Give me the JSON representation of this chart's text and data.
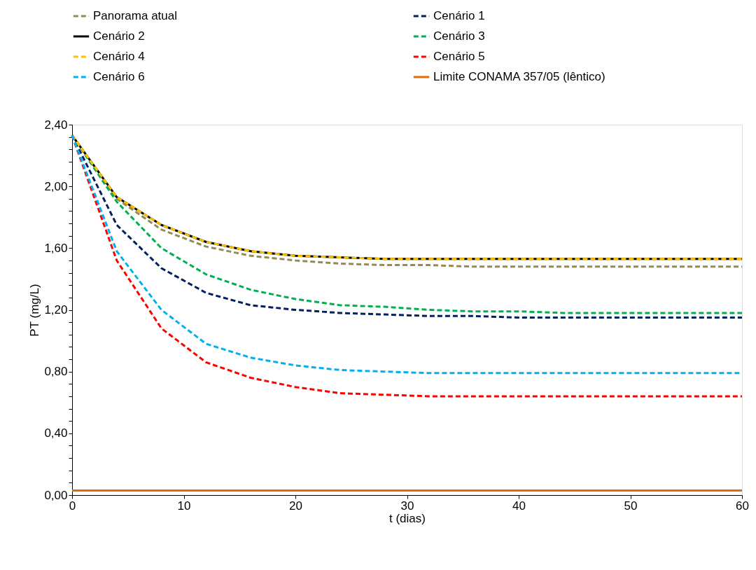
{
  "chart_data": {
    "type": "line",
    "xlabel": "t (dias)",
    "ylabel": "PT (mg/L)",
    "x": [
      0,
      4,
      8,
      12,
      16,
      20,
      24,
      28,
      32,
      36,
      40,
      44,
      48,
      52,
      56,
      60
    ],
    "series": [
      {
        "name": "Panorama atual",
        "color": "#948a54",
        "line_style": "dashed",
        "values": [
          2.33,
          1.92,
          1.72,
          1.61,
          1.55,
          1.52,
          1.5,
          1.49,
          1.49,
          1.48,
          1.48,
          1.48,
          1.48,
          1.48,
          1.48,
          1.48
        ]
      },
      {
        "name": "Cenário 1",
        "color": "#002060",
        "line_style": "dashed",
        "values": [
          2.33,
          1.75,
          1.47,
          1.31,
          1.23,
          1.2,
          1.18,
          1.17,
          1.16,
          1.16,
          1.15,
          1.15,
          1.15,
          1.15,
          1.15,
          1.15
        ]
      },
      {
        "name": "Cenário 2",
        "color": "#000000",
        "line_style": "solid",
        "values": [
          2.33,
          1.93,
          1.75,
          1.64,
          1.58,
          1.55,
          1.54,
          1.53,
          1.53,
          1.53,
          1.53,
          1.53,
          1.53,
          1.53,
          1.53,
          1.53
        ]
      },
      {
        "name": "Cenário 3",
        "color": "#00b050",
        "line_style": "dashed",
        "values": [
          2.33,
          1.9,
          1.6,
          1.43,
          1.33,
          1.27,
          1.23,
          1.22,
          1.2,
          1.19,
          1.19,
          1.18,
          1.18,
          1.18,
          1.18,
          1.18
        ]
      },
      {
        "name": "Cenário 4",
        "color": "#ffc000",
        "line_style": "dashed",
        "values": [
          2.33,
          1.93,
          1.75,
          1.64,
          1.58,
          1.55,
          1.54,
          1.53,
          1.53,
          1.53,
          1.53,
          1.53,
          1.53,
          1.53,
          1.53,
          1.53
        ]
      },
      {
        "name": "Cenário 5",
        "color": "#ff0000",
        "line_style": "dashed",
        "values": [
          2.33,
          1.52,
          1.08,
          0.86,
          0.76,
          0.7,
          0.66,
          0.65,
          0.64,
          0.64,
          0.64,
          0.64,
          0.64,
          0.64,
          0.64,
          0.64
        ]
      },
      {
        "name": "Cenário 6",
        "color": "#00b0f0",
        "line_style": "dashed",
        "values": [
          2.33,
          1.58,
          1.2,
          0.98,
          0.89,
          0.84,
          0.81,
          0.8,
          0.79,
          0.79,
          0.79,
          0.79,
          0.79,
          0.79,
          0.79,
          0.79
        ]
      },
      {
        "name": "Limite CONAMA 357/05 (lêntico)",
        "color": "#e46c0a",
        "line_style": "solid",
        "values": [
          0.03,
          0.03,
          0.03,
          0.03,
          0.03,
          0.03,
          0.03,
          0.03,
          0.03,
          0.03,
          0.03,
          0.03,
          0.03,
          0.03,
          0.03,
          0.03
        ]
      }
    ],
    "xlim": [
      0,
      60
    ],
    "xticks": [
      0,
      10,
      20,
      30,
      40,
      50,
      60
    ],
    "ylim": [
      0,
      2.4
    ],
    "yticks": [
      {
        "value": 0,
        "label": "0,00"
      },
      {
        "value": 0.08,
        "label": null
      },
      {
        "value": 0.16,
        "label": null
      },
      {
        "value": 0.24,
        "label": null
      },
      {
        "value": 0.32,
        "label": null
      },
      {
        "value": 0.4,
        "label": "0,40"
      },
      {
        "value": 0.48,
        "label": null
      },
      {
        "value": 0.56,
        "label": null
      },
      {
        "value": 0.64,
        "label": null
      },
      {
        "value": 0.72,
        "label": null
      },
      {
        "value": 0.8,
        "label": "0,80"
      },
      {
        "value": 0.88,
        "label": null
      },
      {
        "value": 0.96,
        "label": null
      },
      {
        "value": 1.04,
        "label": null
      },
      {
        "value": 1.12,
        "label": null
      },
      {
        "value": 1.2,
        "label": "1,20"
      },
      {
        "value": 1.28,
        "label": null
      },
      {
        "value": 1.36,
        "label": null
      },
      {
        "value": 1.44,
        "label": null
      },
      {
        "value": 1.52,
        "label": null
      },
      {
        "value": 1.6,
        "label": "1,60"
      },
      {
        "value": 1.68,
        "label": null
      },
      {
        "value": 1.76,
        "label": null
      },
      {
        "value": 1.84,
        "label": null
      },
      {
        "value": 1.92,
        "label": null
      },
      {
        "value": 2.0,
        "label": "2,00"
      },
      {
        "value": 2.08,
        "label": null
      },
      {
        "value": 2.16,
        "label": null
      },
      {
        "value": 2.24,
        "label": null
      },
      {
        "value": 2.32,
        "label": null
      },
      {
        "value": 2.4,
        "label": "2,40"
      }
    ],
    "grid": false,
    "legend": "top",
    "marker": "none"
  }
}
